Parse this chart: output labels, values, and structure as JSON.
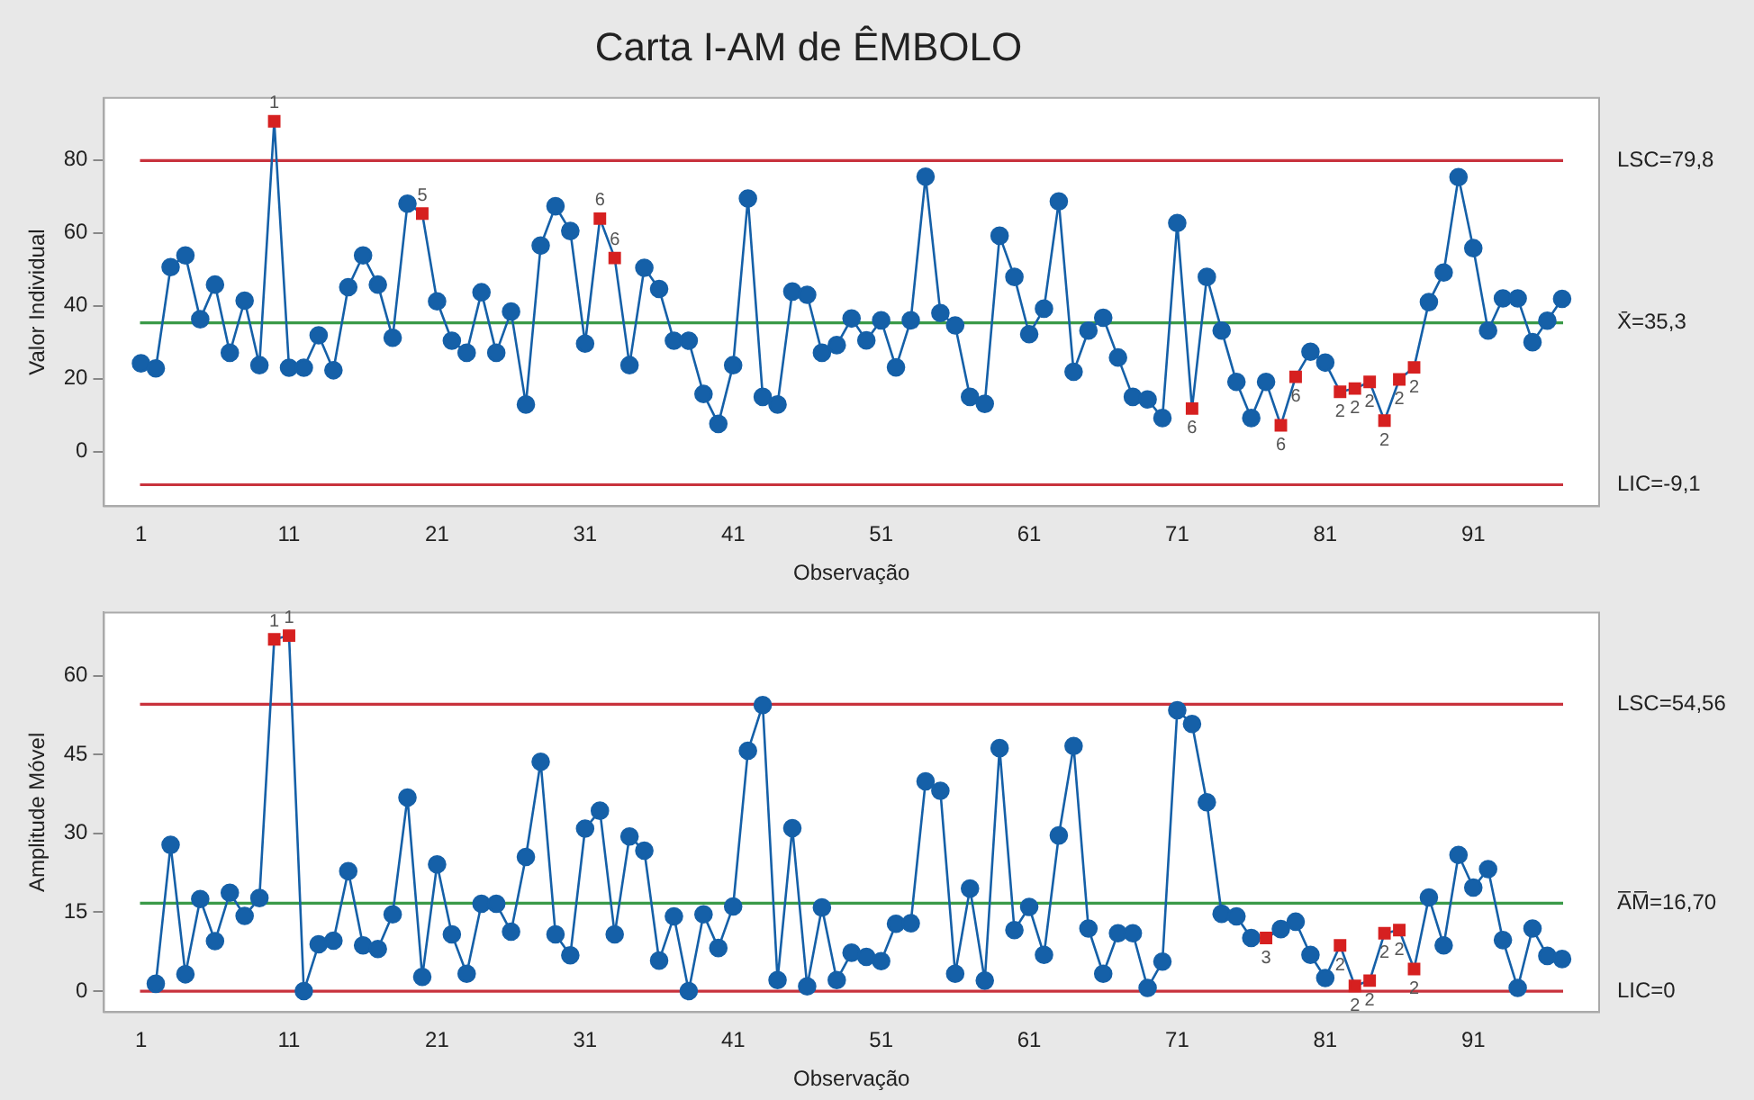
{
  "chart_data": [
    {
      "type": "line",
      "title": "Carta I-AM de ÊMBOLO",
      "xlabel": "Observação",
      "ylabel": "Valor Individual",
      "marker": "circle",
      "x": [
        1,
        2,
        3,
        4,
        5,
        6,
        7,
        8,
        9,
        10,
        11,
        12,
        13,
        14,
        15,
        16,
        17,
        18,
        19,
        20,
        21,
        22,
        23,
        24,
        25,
        26,
        27,
        28,
        29,
        30,
        31,
        32,
        33,
        34,
        35,
        36,
        37,
        38,
        39,
        40,
        41,
        42,
        43,
        44,
        45,
        46,
        47,
        48,
        49,
        50,
        51,
        52,
        53,
        54,
        55,
        56,
        57,
        58,
        59,
        60,
        61,
        62,
        63,
        64,
        65,
        66,
        67,
        68,
        69,
        70,
        71,
        72,
        73,
        74,
        75,
        76,
        77,
        78,
        79,
        80,
        81,
        82,
        83,
        84,
        85,
        86,
        87,
        88,
        89,
        90,
        91,
        92,
        93,
        94,
        95,
        96,
        97
      ],
      "xlim": [
        -1.5,
        99.5
      ],
      "xticks": [
        1,
        11,
        21,
        31,
        41,
        51,
        61,
        71,
        81,
        91
      ],
      "ylim": [
        -15,
        97
      ],
      "yticks": [
        0,
        20,
        40,
        60,
        80
      ],
      "series": [
        {
          "color": "#1560a8",
          "values": [
            24.2,
            22.8,
            50.6,
            53.8,
            36.3,
            45.8,
            27.1,
            41.4,
            23.7,
            90.6,
            23.0,
            23.0,
            31.9,
            22.3,
            45.1,
            53.8,
            45.8,
            31.2,
            68.0,
            65.3,
            41.2,
            30.4,
            27.1,
            43.7,
            27.1,
            38.4,
            12.9,
            56.5,
            67.3,
            60.5,
            29.6,
            63.9,
            53.1,
            23.7,
            50.4,
            44.6,
            30.4,
            30.4,
            15.8,
            7.6,
            23.7,
            69.4,
            15.0,
            12.9,
            43.9,
            43.0,
            27.1,
            29.2,
            36.5,
            30.5,
            36.0,
            23.1,
            36.0,
            75.4,
            38.0,
            34.6,
            15.0,
            13.1,
            59.2,
            47.9,
            32.2,
            39.2,
            68.6,
            21.9,
            33.2,
            36.7,
            25.8,
            15.0,
            14.3,
            9.2,
            62.7,
            11.8,
            47.9,
            33.2,
            19.1,
            9.2,
            19.1,
            7.2,
            20.5,
            27.4,
            24.4,
            16.4,
            17.3,
            19.1,
            8.5,
            19.8,
            23.1,
            41.0,
            49.1,
            75.3,
            55.8,
            33.2,
            42.0,
            42.0,
            30.0,
            35.9,
            41.9
          ],
          "colors": [
            "#1560a8",
            "#1560a8",
            "#1560a8",
            "#1560a8",
            "#1560a8",
            "#1560a8",
            "#1560a8",
            "#1560a8",
            "#1560a8",
            "#d62020",
            "#1560a8",
            "#1560a8",
            "#1560a8",
            "#1560a8",
            "#1560a8",
            "#1560a8",
            "#1560a8",
            "#1560a8",
            "#1560a8",
            "#d62020",
            "#1560a8",
            "#1560a8",
            "#1560a8",
            "#1560a8",
            "#1560a8",
            "#1560a8",
            "#1560a8",
            "#1560a8",
            "#1560a8",
            "#1560a8",
            "#1560a8",
            "#d62020",
            "#d62020",
            "#1560a8",
            "#1560a8",
            "#1560a8",
            "#1560a8",
            "#1560a8",
            "#1560a8",
            "#1560a8",
            "#1560a8",
            "#1560a8",
            "#1560a8",
            "#1560a8",
            "#1560a8",
            "#1560a8",
            "#1560a8",
            "#1560a8",
            "#1560a8",
            "#1560a8",
            "#1560a8",
            "#1560a8",
            "#1560a8",
            "#1560a8",
            "#1560a8",
            "#1560a8",
            "#1560a8",
            "#1560a8",
            "#1560a8",
            "#1560a8",
            "#1560a8",
            "#1560a8",
            "#1560a8",
            "#1560a8",
            "#1560a8",
            "#1560a8",
            "#1560a8",
            "#1560a8",
            "#1560a8",
            "#1560a8",
            "#1560a8",
            "#d62020",
            "#1560a8",
            "#1560a8",
            "#1560a8",
            "#1560a8",
            "#1560a8",
            "#d62020",
            "#d62020",
            "#1560a8",
            "#1560a8",
            "#d62020",
            "#d62020",
            "#d62020",
            "#d62020",
            "#d62020",
            "#d62020",
            "#1560a8",
            "#1560a8",
            "#1560a8",
            "#1560a8",
            "#1560a8",
            "#1560a8",
            "#1560a8",
            "#1560a8",
            "#1560a8",
            "#1560a8"
          ]
        }
      ],
      "ref_lines": [
        {
          "axis": "y",
          "value": 79.8,
          "label": "LSC=79,8",
          "color": "#c8323c"
        },
        {
          "axis": "y",
          "value": 35.3,
          "label": "X̄=35,3",
          "color": "#3a9a48"
        },
        {
          "axis": "y",
          "value": -9.1,
          "label": "LIC=-9,1",
          "color": "#c8323c"
        }
      ],
      "annotations": [
        {
          "text": "1",
          "x": 10,
          "y": 90.6
        },
        {
          "text": "5",
          "x": 20,
          "y": 65.3
        },
        {
          "text": "6",
          "x": 32,
          "y": 63.9
        },
        {
          "text": "6",
          "x": 33,
          "y": 53.1
        },
        {
          "text": "6",
          "x": 72,
          "y": 11.8
        },
        {
          "text": "6",
          "x": 78,
          "y": 7.2
        },
        {
          "text": "6",
          "x": 79,
          "y": 20.5
        },
        {
          "text": "2",
          "x": 82,
          "y": 16.4
        },
        {
          "text": "2",
          "x": 83,
          "y": 17.3
        },
        {
          "text": "2",
          "x": 84,
          "y": 19.1
        },
        {
          "text": "2",
          "x": 85,
          "y": 8.5
        },
        {
          "text": "2",
          "x": 86,
          "y": 19.8
        },
        {
          "text": "2",
          "x": 87,
          "y": 23.1
        }
      ]
    },
    {
      "type": "line",
      "xlabel": "Observação",
      "ylabel": "Amplitude Móvel",
      "marker": "circle",
      "x": [
        2,
        3,
        4,
        5,
        6,
        7,
        8,
        9,
        10,
        11,
        12,
        13,
        14,
        15,
        16,
        17,
        18,
        19,
        20,
        21,
        22,
        23,
        24,
        25,
        26,
        27,
        28,
        29,
        30,
        31,
        32,
        33,
        34,
        35,
        36,
        37,
        38,
        39,
        40,
        41,
        42,
        43,
        44,
        45,
        46,
        47,
        48,
        49,
        50,
        51,
        52,
        53,
        54,
        55,
        56,
        57,
        58,
        59,
        60,
        61,
        62,
        63,
        64,
        65,
        66,
        67,
        68,
        69,
        70,
        71,
        72,
        73,
        74,
        75,
        76,
        77,
        78,
        79,
        80,
        81,
        82,
        83,
        84,
        85,
        86,
        87,
        88,
        89,
        90,
        91,
        92,
        93,
        94,
        95,
        96,
        97
      ],
      "xlim": [
        -1.5,
        99.5
      ],
      "xticks": [
        1,
        11,
        21,
        31,
        41,
        51,
        61,
        71,
        81,
        91
      ],
      "ylim": [
        -4,
        72
      ],
      "yticks": [
        0,
        15,
        30,
        45,
        60
      ],
      "series": [
        {
          "color": "#1560a8",
          "values": [
            1.4,
            27.8,
            3.2,
            17.5,
            9.5,
            18.7,
            14.3,
            17.7,
            66.9,
            67.6,
            0,
            8.9,
            9.6,
            22.8,
            8.7,
            8.0,
            14.6,
            36.8,
            2.7,
            24.1,
            10.8,
            3.3,
            16.6,
            16.6,
            11.3,
            25.5,
            43.6,
            10.8,
            6.8,
            30.9,
            34.3,
            10.8,
            29.4,
            26.7,
            5.8,
            14.2,
            0,
            14.6,
            8.2,
            16.1,
            45.7,
            54.4,
            2.1,
            31.0,
            0.9,
            15.9,
            2.1,
            7.3,
            6.5,
            5.7,
            12.8,
            12.9,
            39.9,
            38.1,
            3.3,
            19.5,
            2.0,
            46.2,
            11.6,
            16.0,
            6.9,
            29.6,
            46.6,
            11.9,
            3.3,
            11.0,
            11.0,
            0.6,
            5.6,
            53.4,
            50.8,
            35.9,
            14.7,
            14.2,
            10.1,
            10.1,
            11.8,
            13.2,
            6.9,
            2.5,
            8.7,
            1.0,
            2.0,
            11.0,
            11.6,
            4.2,
            17.8,
            8.7,
            25.9,
            19.7,
            23.2,
            9.7,
            0.6,
            11.9,
            6.7,
            6.1
          ],
          "colors": [
            "#1560a8",
            "#1560a8",
            "#1560a8",
            "#1560a8",
            "#1560a8",
            "#1560a8",
            "#1560a8",
            "#1560a8",
            "#d62020",
            "#d62020",
            "#1560a8",
            "#1560a8",
            "#1560a8",
            "#1560a8",
            "#1560a8",
            "#1560a8",
            "#1560a8",
            "#1560a8",
            "#1560a8",
            "#1560a8",
            "#1560a8",
            "#1560a8",
            "#1560a8",
            "#1560a8",
            "#1560a8",
            "#1560a8",
            "#1560a8",
            "#1560a8",
            "#1560a8",
            "#1560a8",
            "#1560a8",
            "#1560a8",
            "#1560a8",
            "#1560a8",
            "#1560a8",
            "#1560a8",
            "#1560a8",
            "#1560a8",
            "#1560a8",
            "#1560a8",
            "#1560a8",
            "#1560a8",
            "#1560a8",
            "#1560a8",
            "#1560a8",
            "#1560a8",
            "#1560a8",
            "#1560a8",
            "#1560a8",
            "#1560a8",
            "#1560a8",
            "#1560a8",
            "#1560a8",
            "#1560a8",
            "#1560a8",
            "#1560a8",
            "#1560a8",
            "#1560a8",
            "#1560a8",
            "#1560a8",
            "#1560a8",
            "#1560a8",
            "#1560a8",
            "#1560a8",
            "#1560a8",
            "#1560a8",
            "#1560a8",
            "#1560a8",
            "#1560a8",
            "#1560a8",
            "#1560a8",
            "#1560a8",
            "#1560a8",
            "#1560a8",
            "#1560a8",
            "#d62020",
            "#1560a8",
            "#1560a8",
            "#1560a8",
            "#1560a8",
            "#d62020",
            "#d62020",
            "#d62020",
            "#d62020",
            "#d62020",
            "#d62020",
            "#1560a8",
            "#1560a8",
            "#1560a8",
            "#1560a8",
            "#1560a8",
            "#1560a8",
            "#1560a8",
            "#1560a8",
            "#1560a8",
            "#1560a8"
          ]
        }
      ],
      "ref_lines": [
        {
          "axis": "y",
          "value": 54.56,
          "label": "LSC=54,56",
          "color": "#c8323c"
        },
        {
          "axis": "y",
          "value": 16.7,
          "label": "A̅M̅=16,70",
          "color": "#3a9a48"
        },
        {
          "axis": "y",
          "value": 0,
          "label": "LIC=0",
          "color": "#c8323c"
        }
      ],
      "annotations": [
        {
          "text": "1",
          "x": 10,
          "y": 66.9
        },
        {
          "text": "1",
          "x": 11,
          "y": 67.6
        },
        {
          "text": "3",
          "x": 77,
          "y": 10.1
        },
        {
          "text": "2",
          "x": 82,
          "y": 8.7
        },
        {
          "text": "2",
          "x": 83,
          "y": 1.0
        },
        {
          "text": "2",
          "x": 84,
          "y": 2.0
        },
        {
          "text": "2",
          "x": 85,
          "y": 11.0
        },
        {
          "text": "2",
          "x": 86,
          "y": 11.6
        },
        {
          "text": "2",
          "x": 87,
          "y": 4.2
        }
      ]
    }
  ]
}
